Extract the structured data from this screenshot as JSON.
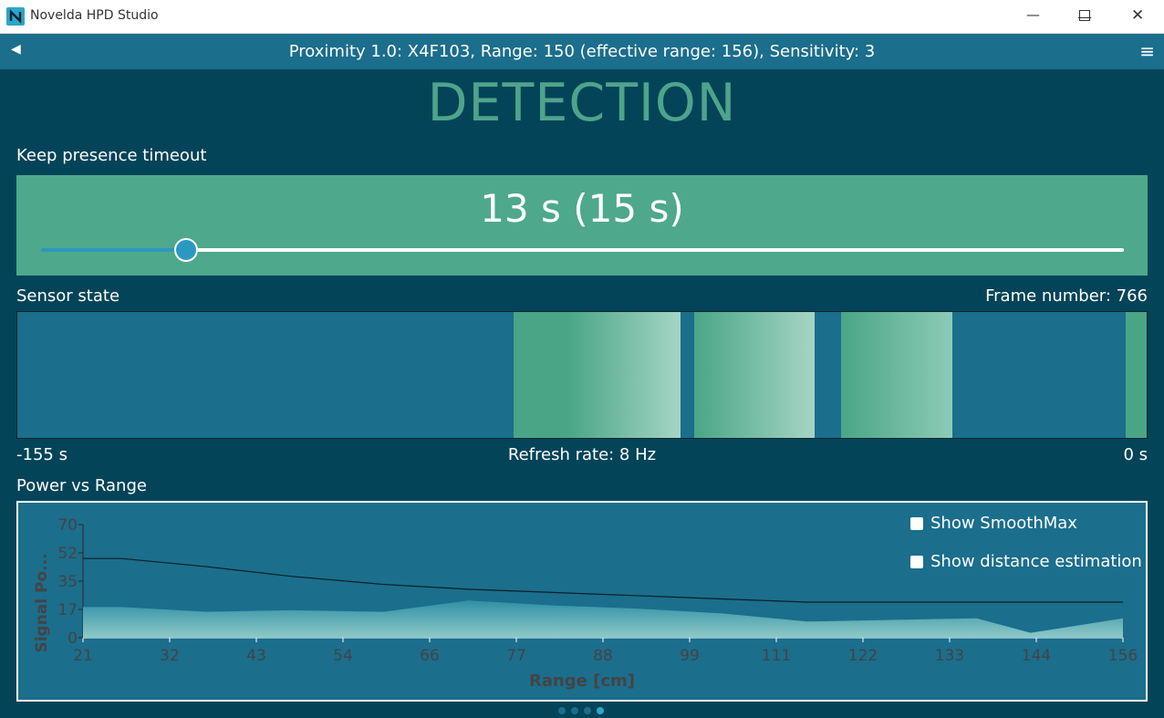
{
  "window": {
    "title": "Novelda HPD Studio"
  },
  "header": {
    "title": "Proximity 1.0: X4F103, Range: 150 (effective range: 156), Sensitivity: 3"
  },
  "page": {
    "heading": "DETECTION"
  },
  "timeout": {
    "label": "Keep presence timeout",
    "value": "13 s (15 s)",
    "slider_fraction": 0.134
  },
  "sensor": {
    "label": "Sensor state",
    "frame_number": "Frame number: 766",
    "left_label": "-155 s",
    "center_label": "Refresh rate: 8 Hz",
    "right_label": "0 s"
  },
  "power": {
    "label": "Power vs Range",
    "show_smoothmax": "Show SmoothMax",
    "show_distance": "Show distance estimation"
  },
  "colors": {
    "background": "#034459",
    "panel": "#1b6e8c",
    "accent": "#4ea88c",
    "slider": "#2a98c0"
  },
  "chart_data": {
    "type": "area",
    "xlabel": "Range [cm]",
    "ylabel": "Signal Po...",
    "x_ticks": [
      "21",
      "32",
      "43",
      "54",
      "66",
      "77",
      "88",
      "99",
      "111",
      "122",
      "133",
      "144",
      "156"
    ],
    "y_ticks": [
      "0",
      "17",
      "35",
      "52",
      "70"
    ],
    "xlim": [
      21,
      156
    ],
    "ylim": [
      0,
      70
    ],
    "series": [
      {
        "kind": "area",
        "x": [
          21,
          26,
          37,
          48,
          60,
          71,
          82,
          93,
          104,
          115,
          126,
          137,
          144,
          156
        ],
        "y": [
          19,
          19,
          16,
          17,
          16,
          23,
          20,
          18,
          15,
          10,
          11,
          12,
          3,
          12
        ]
      },
      {
        "kind": "line",
        "x": [
          21,
          26,
          37,
          48,
          60,
          71,
          82,
          93,
          104,
          115,
          126,
          137,
          144,
          156
        ],
        "y": [
          49,
          49,
          44,
          38,
          33,
          30,
          28,
          26,
          24,
          22,
          22,
          22,
          22,
          22
        ]
      }
    ]
  }
}
